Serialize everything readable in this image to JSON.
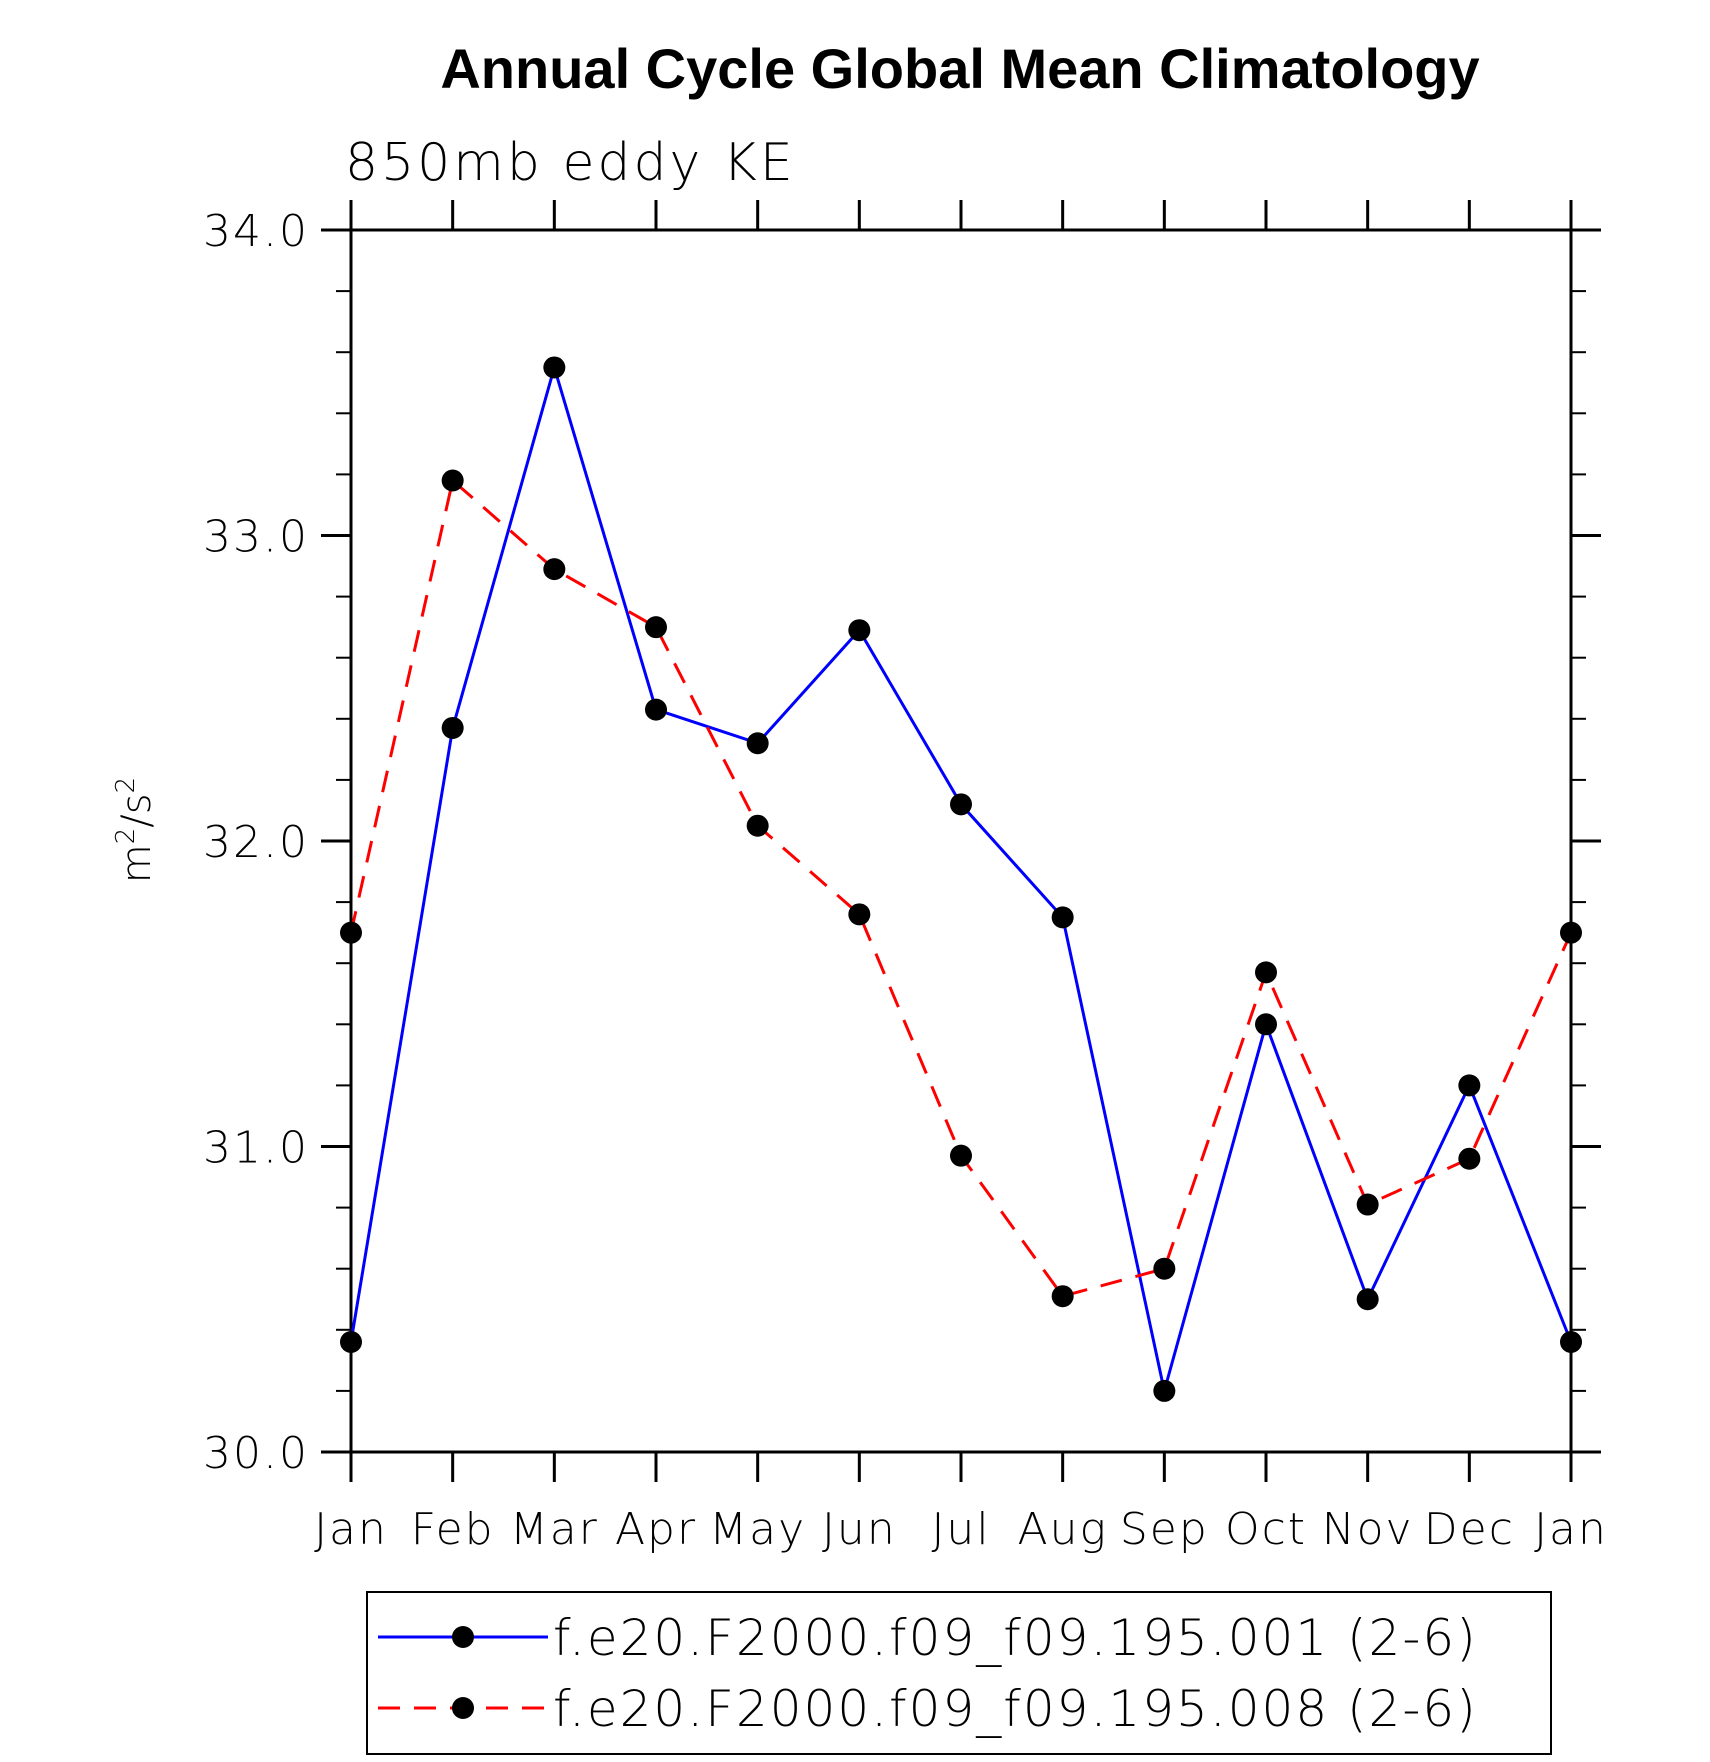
{
  "chart_data": {
    "type": "line",
    "title": "Annual Cycle Global Mean Climatology",
    "subtitle": "850mb eddy KE",
    "ylabel": "m²/s²",
    "ylabel_base": "m",
    "ylabel_exp1": "2",
    "ylabel_sep": "/s",
    "ylabel_exp2": "2",
    "xlabel": "",
    "ylim": [
      30.0,
      34.0
    ],
    "yticks": [
      "30.0",
      "31.0",
      "32.0",
      "33.0",
      "34.0"
    ],
    "categories": [
      "Jan",
      "Feb",
      "Mar",
      "Apr",
      "May",
      "Jun",
      "Jul",
      "Aug",
      "Sep",
      "Oct",
      "Nov",
      "Dec",
      "Jan"
    ],
    "series": [
      {
        "name": "f.e20.F2000.f09_f09.195.001 (2-6)",
        "color": "#0000ff",
        "dash": "solid",
        "marker": "filled-circle",
        "values": [
          30.36,
          32.37,
          33.55,
          32.43,
          32.32,
          32.69,
          32.12,
          31.75,
          30.2,
          31.4,
          30.5,
          31.2,
          30.36
        ]
      },
      {
        "name": "f.e20.F2000.f09_f09.195.008 (2-6)",
        "color": "#ff0000",
        "dash": "dashed",
        "marker": "filled-circle",
        "values": [
          31.7,
          33.18,
          32.89,
          32.7,
          32.05,
          31.76,
          30.97,
          30.51,
          30.6,
          31.57,
          30.81,
          30.96,
          31.7
        ]
      }
    ],
    "legend_position": "bottom-center"
  }
}
